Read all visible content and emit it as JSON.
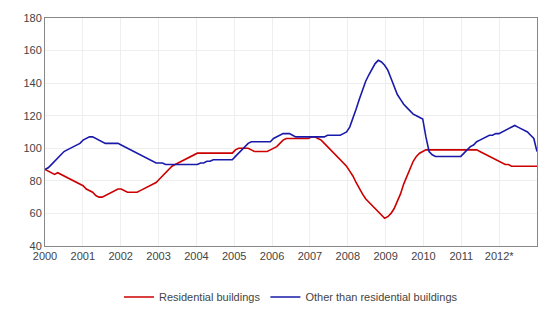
{
  "chart_data": {
    "type": "line",
    "x": [
      2000,
      2000.0839,
      2000.1677,
      2000.2516,
      2000.3355,
      2000.4194,
      2000.5032,
      2000.5871,
      2000.671,
      2000.7548,
      2000.8387,
      2000.9226,
      2001.0065,
      2001.0903,
      2001.1742,
      2001.2581,
      2001.3419,
      2001.4258,
      2001.5097,
      2001.5935,
      2001.6774,
      2001.7613,
      2001.8452,
      2001.929,
      2002.0129,
      2002.0968,
      2002.1806,
      2002.2645,
      2002.3484,
      2002.4323,
      2002.5161,
      2002.6,
      2002.6839,
      2002.7677,
      2002.8516,
      2002.9355,
      2003.0194,
      2003.1032,
      2003.1871,
      2003.271,
      2003.3548,
      2003.4387,
      2003.5226,
      2003.6065,
      2003.6903,
      2003.7742,
      2003.8581,
      2003.9419,
      2004.0258,
      2004.1097,
      2004.1935,
      2004.2774,
      2004.3613,
      2004.4452,
      2004.529,
      2004.6129,
      2004.6968,
      2004.7806,
      2004.8645,
      2004.9484,
      2005.0323,
      2005.1161,
      2005.2,
      2005.2839,
      2005.3677,
      2005.4516,
      2005.5355,
      2005.6194,
      2005.7032,
      2005.7871,
      2005.871,
      2005.9548,
      2006.0387,
      2006.1226,
      2006.2065,
      2006.2903,
      2006.3742,
      2006.4581,
      2006.5419,
      2006.6258,
      2006.7097,
      2006.7935,
      2006.8774,
      2006.9613,
      2007.0452,
      2007.129,
      2007.2129,
      2007.2968,
      2007.3806,
      2007.4645,
      2007.5484,
      2007.6323,
      2007.7161,
      2007.8,
      2007.8839,
      2007.9677,
      2008.0516,
      2008.1355,
      2008.2194,
      2008.3032,
      2008.3871,
      2008.471,
      2008.5548,
      2008.6387,
      2008.7226,
      2008.8065,
      2008.8903,
      2008.9742,
      2009.0581,
      2009.1419,
      2009.2258,
      2009.3097,
      2009.3935,
      2009.4774,
      2009.5613,
      2009.6452,
      2009.729,
      2009.8129,
      2009.8968,
      2009.9806,
      2010.0645,
      2010.1484,
      2010.2323,
      2010.3161,
      2010.4,
      2010.4839,
      2010.5677,
      2010.6516,
      2010.7355,
      2010.8194,
      2010.9032,
      2010.9871,
      2011.071,
      2011.1548,
      2011.2387,
      2011.3226,
      2011.4065,
      2011.4903,
      2011.5742,
      2011.6581,
      2011.7419,
      2011.8258,
      2011.9097,
      2011.9935,
      2012.0774,
      2012.1613,
      2012.2452,
      2012.329,
      2012.4129,
      2012.4968,
      2012.5806,
      2012.6645,
      2012.7484,
      2012.8323,
      2012.9161,
      2013
    ],
    "series": [
      {
        "name": "Residential buildings",
        "color": "#cc0000",
        "values": [
          87,
          86,
          85,
          84,
          85,
          84,
          83,
          82,
          81,
          80,
          79,
          78,
          77,
          75,
          74,
          73,
          71,
          70,
          70,
          71,
          72,
          73,
          74,
          75,
          75,
          74,
          73,
          73,
          73,
          73,
          74,
          75,
          76,
          77,
          78,
          79,
          81,
          83,
          85,
          87,
          89,
          90,
          91,
          92,
          93,
          94,
          95,
          96,
          97,
          97,
          97,
          97,
          97,
          97,
          97,
          97,
          97,
          97,
          97,
          97,
          99,
          100,
          100,
          100,
          100,
          99,
          98,
          98,
          98,
          98,
          98,
          99,
          100,
          101,
          103,
          105,
          106,
          106,
          106,
          106,
          106,
          106,
          106,
          106,
          107,
          107,
          106,
          105,
          103,
          101,
          99,
          97,
          95,
          93,
          91,
          89,
          86,
          83,
          79,
          75,
          72,
          69,
          67,
          65,
          63,
          61,
          59,
          57,
          58,
          60,
          63,
          67,
          72,
          78,
          83,
          88,
          92,
          95,
          97,
          98,
          99,
          99,
          99,
          99,
          99,
          99,
          99,
          99,
          99,
          99,
          99,
          99,
          99,
          99,
          99,
          99,
          99,
          98,
          97,
          96,
          95,
          94,
          93,
          92,
          91,
          90,
          90,
          89,
          89,
          89,
          89,
          89,
          89,
          89,
          89,
          89
        ]
      },
      {
        "name": "Other than residential buildings",
        "color": "#1a1aaa",
        "values": [
          87,
          88,
          90,
          92,
          94,
          96,
          98,
          99,
          100,
          101,
          102,
          103,
          105,
          106,
          107,
          107,
          106,
          105,
          104,
          103,
          103,
          103,
          103,
          103,
          102,
          101,
          100,
          99,
          98,
          97,
          96,
          95,
          94,
          93,
          92,
          91,
          91,
          91,
          90,
          90,
          90,
          90,
          90,
          90,
          90,
          90,
          90,
          90,
          90,
          91,
          91,
          92,
          92,
          93,
          93,
          93,
          93,
          93,
          93,
          93,
          95,
          97,
          99,
          101,
          103,
          104,
          104,
          104,
          104,
          104,
          104,
          104,
          106,
          107,
          108,
          109,
          109,
          109,
          108,
          107,
          107,
          107,
          107,
          107,
          107,
          107,
          107,
          107,
          107,
          108,
          108,
          108,
          108,
          108,
          109,
          110,
          113,
          118,
          124,
          130,
          136,
          141,
          145,
          149,
          152,
          154,
          153,
          151,
          148,
          143,
          138,
          133,
          130,
          127,
          125,
          123,
          121,
          120,
          119,
          118,
          107,
          98,
          96,
          95,
          95,
          95,
          95,
          95,
          95,
          95,
          95,
          95,
          97,
          99,
          101,
          102,
          104,
          105,
          106,
          107,
          108,
          108,
          109,
          109,
          110,
          111,
          112,
          113,
          114,
          113,
          112,
          111,
          110,
          108,
          106,
          98
        ]
      }
    ],
    "xlim": [
      2000,
      2013
    ],
    "xticks": [
      2000,
      2001,
      2002,
      2003,
      2004,
      2005,
      2006,
      2007,
      2008,
      2009,
      2010,
      2011,
      {
        "value": 2012,
        "label": "2012*"
      }
    ],
    "ylim": [
      40,
      180
    ],
    "yticks": [
      40,
      60,
      80,
      100,
      120,
      140,
      160,
      180
    ],
    "grid": true,
    "legend": "bottom"
  }
}
